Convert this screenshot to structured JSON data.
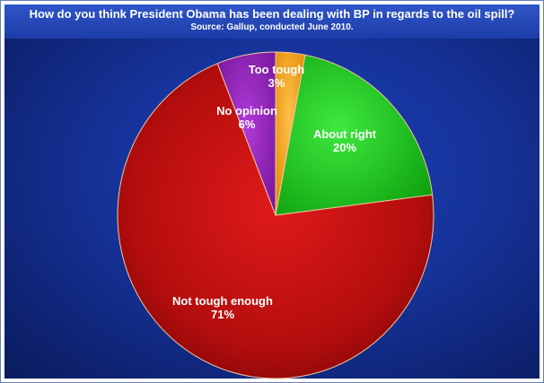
{
  "header": {
    "title": "How do you think President Obama has been dealing with BP in regards to the oil spill?",
    "subtitle": "Source: Gallup, conducted June 2010."
  },
  "chart_data": {
    "type": "pie",
    "title": "How do you think President Obama has been dealing with BP in regards to the oil spill?",
    "subtitle": "Source: Gallup, conducted June 2010.",
    "slices": [
      {
        "label": "Too tough",
        "value": 3,
        "display": "3%",
        "color": "#f5a21a"
      },
      {
        "label": "About right",
        "value": 20,
        "display": "20%",
        "color": "#19c419"
      },
      {
        "label": "Not tough enough",
        "value": 71,
        "display": "71%",
        "color": "#c00f0f"
      },
      {
        "label": "No opinion",
        "value": 6,
        "display": "6%",
        "color": "#8a1fb0"
      }
    ]
  }
}
